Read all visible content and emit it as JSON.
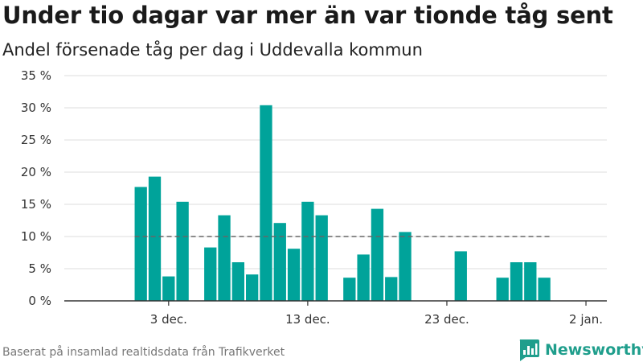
{
  "header": {
    "title": "Under tio dagar var mer än var tionde tåg sent",
    "subtitle": "Andel försenade tåg per dag i Uddevalla kommun"
  },
  "footer": {
    "source": "Baserat på insamlad realtidsdata från Trafikverket",
    "brand": "Newsworthy",
    "brand_icon": "bar-chart-logo-icon"
  },
  "colors": {
    "bar": "#00a39a",
    "reference_line": "#666666",
    "brand": "#1f9e8c"
  },
  "chart_data": {
    "type": "bar",
    "title": "Under tio dagar var mer än var tionde tåg sent",
    "subtitle": "Andel försenade tåg per dag i Uddevalla kommun",
    "xlabel": "",
    "ylabel": "",
    "x_axis_type": "date",
    "categories": [
      "2023-12-01",
      "2023-12-02",
      "2023-12-03",
      "2023-12-04",
      "2023-12-05",
      "2023-12-06",
      "2023-12-07",
      "2023-12-08",
      "2023-12-09",
      "2023-12-10",
      "2023-12-11",
      "2023-12-12",
      "2023-12-13",
      "2023-12-14",
      "2023-12-15",
      "2023-12-16",
      "2023-12-17",
      "2023-12-18",
      "2023-12-19",
      "2023-12-20",
      "2023-12-21",
      "2023-12-22",
      "2023-12-23",
      "2023-12-24",
      "2023-12-25",
      "2023-12-26",
      "2023-12-27",
      "2023-12-28",
      "2023-12-29",
      "2023-12-30"
    ],
    "values": [
      17.7,
      19.3,
      3.8,
      15.4,
      null,
      8.3,
      13.3,
      6.0,
      4.1,
      30.4,
      12.1,
      8.1,
      15.4,
      13.3,
      null,
      3.6,
      7.2,
      14.3,
      3.7,
      10.7,
      null,
      null,
      null,
      7.7,
      null,
      null,
      3.6,
      6.0,
      6.0,
      3.6
    ],
    "ylim": [
      0,
      35
    ],
    "yticks": [
      0,
      5,
      10,
      15,
      20,
      25,
      30,
      35
    ],
    "ytick_labels": [
      "0 %",
      "5 %",
      "10 %",
      "15 %",
      "20 %",
      "25 %",
      "30 %",
      "35 %"
    ],
    "xticks": [
      "2023-12-03",
      "2023-12-13",
      "2023-12-23",
      "2024-01-02"
    ],
    "xtick_labels": [
      "3 dec.",
      "13 dec.",
      "23 dec.",
      "2 jan."
    ],
    "reference_line": {
      "value": 10,
      "style": "dashed"
    },
    "grid": true,
    "legend": "none"
  }
}
